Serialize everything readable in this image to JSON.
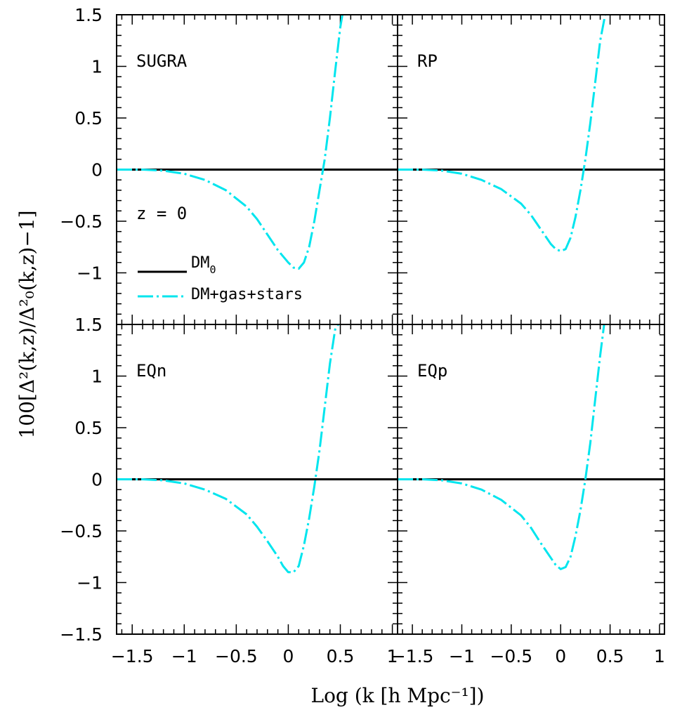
{
  "chart_data": {
    "type": "line",
    "xlabel": "Log (k [h Mpc⁻¹])",
    "ylabel": "100[Δ²(k,z)/Δ²₀(k,z)−1]",
    "xlim": [
      -1.65,
      1.05
    ],
    "ylim": [
      -1.5,
      1.5
    ],
    "x_ticks": [
      -1.5,
      -1,
      -0.5,
      0,
      0.5,
      1
    ],
    "x_tick_labels": [
      "−1.5",
      "−1",
      "−0.5",
      "0",
      "0.5",
      "1"
    ],
    "y_ticks": [
      -1.5,
      -1,
      -0.5,
      0,
      0.5,
      1,
      1.5
    ],
    "y_tick_labels": [
      "−1.5",
      "−1",
      "−0.5",
      "0",
      "0.5",
      "1",
      "1.5"
    ],
    "grid": false,
    "annotation": "z = 0",
    "legend": {
      "placement": "lower-left of top-left panel",
      "entries": [
        {
          "label": "DM",
          "subscript": "0",
          "color": "#000000",
          "style": "solid"
        },
        {
          "label": "DM+gas+stars",
          "color": "#00e5ee",
          "style": "dash-dot"
        }
      ]
    },
    "panels": [
      {
        "label": "SUGRA",
        "series": [
          {
            "name": "DM₀",
            "x": [
              -1.65,
              1.05
            ],
            "y": [
              0,
              0
            ]
          },
          {
            "name": "DM+gas+stars",
            "x": [
              -1.65,
              -1.4,
              -1.2,
              -1.0,
              -0.8,
              -0.6,
              -0.4,
              -0.3,
              -0.2,
              -0.1,
              0.0,
              0.05,
              0.1,
              0.15,
              0.2,
              0.25,
              0.3,
              0.35,
              0.4,
              0.45,
              0.5,
              0.52
            ],
            "y": [
              0,
              0,
              -0.01,
              -0.04,
              -0.1,
              -0.2,
              -0.36,
              -0.48,
              -0.63,
              -0.78,
              -0.9,
              -0.95,
              -0.96,
              -0.9,
              -0.75,
              -0.5,
              -0.2,
              0.1,
              0.5,
              0.95,
              1.38,
              1.5
            ]
          }
        ]
      },
      {
        "label": "RP",
        "series": [
          {
            "name": "DM₀",
            "x": [
              -1.65,
              1.05
            ],
            "y": [
              0,
              0
            ]
          },
          {
            "name": "DM+gas+stars",
            "x": [
              -1.65,
              -1.4,
              -1.2,
              -1.0,
              -0.8,
              -0.6,
              -0.4,
              -0.3,
              -0.2,
              -0.1,
              -0.05,
              0.0,
              0.05,
              0.1,
              0.15,
              0.2,
              0.25,
              0.3,
              0.35,
              0.4,
              0.45
            ],
            "y": [
              0,
              0,
              -0.01,
              -0.04,
              -0.1,
              -0.19,
              -0.33,
              -0.44,
              -0.58,
              -0.72,
              -0.77,
              -0.79,
              -0.77,
              -0.66,
              -0.46,
              -0.2,
              0.1,
              0.45,
              0.85,
              1.25,
              1.5
            ]
          }
        ]
      },
      {
        "label": "EQn",
        "series": [
          {
            "name": "DM₀",
            "x": [
              -1.65,
              1.05
            ],
            "y": [
              0,
              0
            ]
          },
          {
            "name": "DM+gas+stars",
            "x": [
              -1.65,
              -1.4,
              -1.2,
              -1.0,
              -0.8,
              -0.6,
              -0.4,
              -0.3,
              -0.2,
              -0.1,
              -0.05,
              0.0,
              0.05,
              0.1,
              0.15,
              0.2,
              0.25,
              0.3,
              0.35,
              0.4,
              0.45,
              0.48
            ],
            "y": [
              0,
              0,
              -0.01,
              -0.04,
              -0.1,
              -0.19,
              -0.34,
              -0.46,
              -0.6,
              -0.75,
              -0.84,
              -0.9,
              -0.9,
              -0.84,
              -0.64,
              -0.38,
              -0.07,
              0.28,
              0.7,
              1.12,
              1.45,
              1.5
            ]
          }
        ]
      },
      {
        "label": "EQp",
        "series": [
          {
            "name": "DM₀",
            "x": [
              -1.65,
              1.05
            ],
            "y": [
              0,
              0
            ]
          },
          {
            "name": "DM+gas+stars",
            "x": [
              -1.65,
              -1.4,
              -1.2,
              -1.0,
              -0.8,
              -0.6,
              -0.4,
              -0.3,
              -0.2,
              -0.1,
              -0.05,
              0.0,
              0.05,
              0.1,
              0.15,
              0.2,
              0.25,
              0.3,
              0.35,
              0.4,
              0.44
            ],
            "y": [
              0,
              0,
              -0.01,
              -0.04,
              -0.1,
              -0.2,
              -0.35,
              -0.47,
              -0.62,
              -0.76,
              -0.83,
              -0.87,
              -0.85,
              -0.75,
              -0.55,
              -0.3,
              0.0,
              0.35,
              0.78,
              1.2,
              1.5
            ]
          }
        ]
      }
    ]
  }
}
